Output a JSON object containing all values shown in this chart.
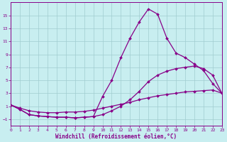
{
  "xlabel": "Windchill (Refroidissement éolien,°C)",
  "background_color": "#c8eef0",
  "line_color": "#880088",
  "xlim": [
    0,
    23
  ],
  "ylim": [
    -2.0,
    17.0
  ],
  "yticks": [
    -1,
    1,
    3,
    5,
    7,
    9,
    11,
    13,
    15
  ],
  "xticks": [
    0,
    1,
    2,
    3,
    4,
    5,
    6,
    7,
    8,
    9,
    10,
    11,
    12,
    13,
    14,
    15,
    16,
    17,
    18,
    19,
    20,
    21,
    22,
    23
  ],
  "series": [
    {
      "x": [
        0,
        1,
        2,
        3,
        4,
        5,
        6,
        7,
        8,
        9,
        10,
        11,
        12,
        13,
        14,
        15,
        16,
        17,
        18,
        19,
        20,
        21,
        22,
        23
      ],
      "y": [
        1.2,
        0.7,
        0.3,
        0.1,
        0.0,
        0.0,
        0.1,
        0.1,
        0.2,
        0.4,
        0.7,
        1.0,
        1.3,
        1.6,
        2.0,
        2.3,
        2.6,
        2.8,
        3.0,
        3.2,
        3.3,
        3.4,
        3.5,
        3.0
      ]
    },
    {
      "x": [
        0,
        1,
        2,
        3,
        4,
        5,
        6,
        7,
        8,
        9,
        10,
        11,
        12,
        13,
        14,
        15,
        16,
        17,
        18,
        19,
        20,
        21,
        22,
        23
      ],
      "y": [
        1.2,
        0.5,
        -0.3,
        -0.5,
        -0.6,
        -0.7,
        -0.7,
        -0.8,
        -0.7,
        -0.6,
        -0.3,
        0.3,
        1.0,
        2.0,
        3.3,
        4.8,
        5.8,
        6.4,
        6.8,
        7.0,
        7.2,
        6.8,
        5.8,
        3.0
      ]
    },
    {
      "x": [
        0,
        1,
        2,
        3,
        4,
        5,
        6,
        7,
        8,
        9,
        10,
        11,
        12,
        13,
        14,
        15,
        16,
        17,
        18,
        19,
        20,
        21,
        22,
        23
      ],
      "y": [
        1.2,
        0.5,
        -0.3,
        -0.5,
        -0.6,
        -0.7,
        -0.7,
        -0.8,
        -0.7,
        -0.6,
        2.5,
        5.0,
        8.5,
        11.5,
        14.0,
        16.0,
        15.2,
        11.5,
        9.2,
        8.5,
        7.5,
        6.5,
        4.5,
        3.0
      ]
    }
  ]
}
